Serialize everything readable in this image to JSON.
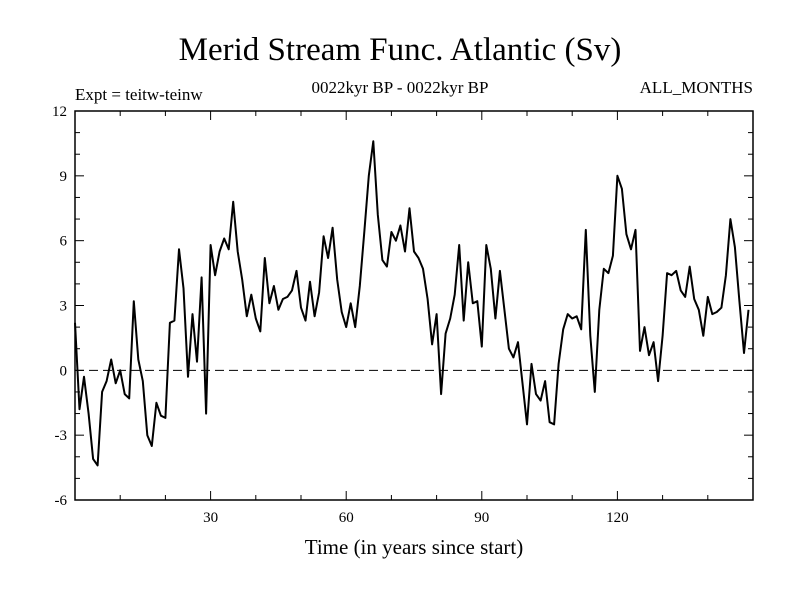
{
  "header": {
    "title": "Merid Stream Func. Atlantic (Sv)",
    "experiment": "Expt = teitw-teinw",
    "period": "0022kyr BP - 0022kyr BP",
    "months": "ALL_MONTHS"
  },
  "chart_data": {
    "type": "line",
    "title": "Merid Stream Func. Atlantic (Sv)",
    "xlabel": "Time (in years since start)",
    "ylabel": "",
    "xlim": [
      0,
      150
    ],
    "ylim": [
      -6,
      12
    ],
    "xticks": [
      30,
      60,
      90,
      120
    ],
    "xminorstep": 10,
    "yticks": [
      -6,
      -3,
      0,
      3,
      6,
      9,
      12
    ],
    "zero_line": true,
    "grid": false,
    "series": [
      {
        "name": "teitw-teinw",
        "color": "#000000",
        "x_start": 0,
        "x_step": 1,
        "values": [
          2.2,
          -1.8,
          -0.3,
          -2.0,
          -4.1,
          -4.4,
          -1.0,
          -0.5,
          0.5,
          -0.6,
          0.0,
          -1.1,
          -1.3,
          3.2,
          0.5,
          -0.5,
          -3.0,
          -3.5,
          -1.5,
          -2.1,
          -2.2,
          2.2,
          2.3,
          5.6,
          3.8,
          -0.3,
          2.6,
          0.4,
          4.3,
          -2.0,
          5.8,
          4.4,
          5.5,
          6.1,
          5.6,
          7.8,
          5.5,
          4.2,
          2.5,
          3.5,
          2.4,
          1.8,
          5.2,
          3.1,
          3.9,
          2.8,
          3.3,
          3.4,
          3.7,
          4.6,
          2.9,
          2.3,
          4.1,
          2.5,
          3.6,
          6.2,
          5.2,
          6.6,
          4.2,
          2.7,
          2.0,
          3.1,
          2.0,
          3.9,
          6.4,
          9.0,
          10.6,
          7.2,
          5.1,
          4.8,
          6.4,
          6.0,
          6.7,
          5.5,
          7.5,
          5.5,
          5.2,
          4.7,
          3.3,
          1.2,
          2.6,
          -1.1,
          1.7,
          2.4,
          3.5,
          5.8,
          2.3,
          5.0,
          3.1,
          3.2,
          1.1,
          5.8,
          4.7,
          2.4,
          4.6,
          2.8,
          1.0,
          0.6,
          1.3,
          -0.6,
          -2.5,
          0.3,
          -1.1,
          -1.4,
          -0.5,
          -2.4,
          -2.5,
          0.3,
          1.9,
          2.6,
          2.4,
          2.5,
          1.9,
          6.5,
          1.6,
          -1.0,
          2.8,
          4.7,
          4.5,
          5.3,
          9.0,
          8.4,
          6.3,
          5.6,
          6.5,
          0.9,
          2.0,
          0.7,
          1.3,
          -0.5,
          1.6,
          4.5,
          4.4,
          4.6,
          3.7,
          3.4,
          4.8,
          3.3,
          2.8,
          1.6,
          3.4,
          2.6,
          2.7,
          2.9,
          4.4,
          7.0,
          5.7,
          3.2,
          0.8,
          2.8
        ]
      }
    ]
  }
}
